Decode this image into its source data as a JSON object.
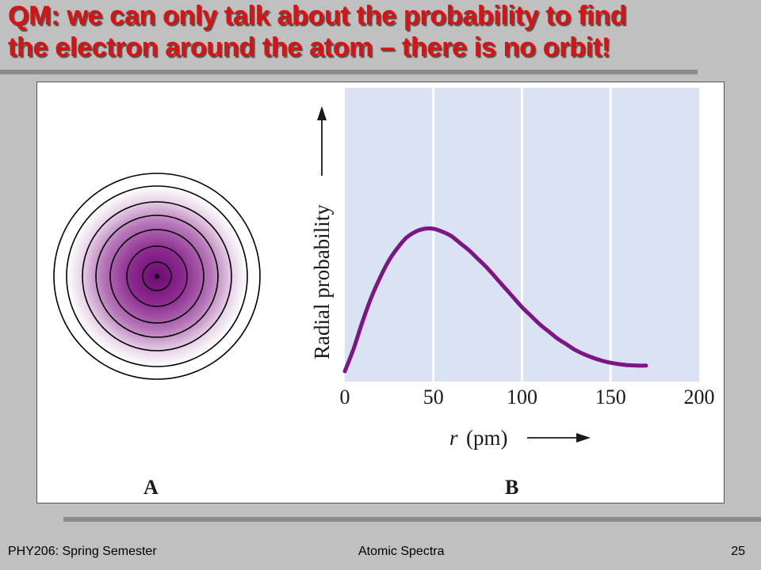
{
  "slide": {
    "title_line1": "QM: we can only talk about the probability to find",
    "title_line2": "the electron around the atom – there is no orbit!",
    "title_color": "#dd1111"
  },
  "figure": {
    "panel_a_label": "A",
    "panel_b_label": "B",
    "orbital_color": "#8a1a8a",
    "orbital_rings": 6,
    "chart_background": "#d9e3f4",
    "curve_color": "#7d1585"
  },
  "chart_data": {
    "type": "line",
    "xlabel_var": "r",
    "xlabel_unit": "(pm)",
    "ylabel": "Radial probability",
    "xlim": [
      0,
      200
    ],
    "ylim": [
      0,
      1
    ],
    "x_ticks": [
      "0",
      "50",
      "100",
      "150",
      "200"
    ],
    "grid": "vertical",
    "series": [
      {
        "x": [
          0,
          5,
          10,
          15,
          20,
          25,
          30,
          35,
          40,
          45,
          50,
          55,
          60,
          65,
          70,
          75,
          80,
          85,
          90,
          95,
          100,
          105,
          110,
          115,
          120,
          125,
          130,
          135,
          140,
          145,
          150,
          155,
          160,
          165,
          170
        ],
        "values": [
          0.0,
          0.16,
          0.35,
          0.52,
          0.66,
          0.78,
          0.87,
          0.94,
          0.98,
          1.0,
          1.0,
          0.98,
          0.95,
          0.9,
          0.85,
          0.79,
          0.73,
          0.66,
          0.59,
          0.52,
          0.45,
          0.39,
          0.33,
          0.28,
          0.23,
          0.19,
          0.15,
          0.12,
          0.095,
          0.075,
          0.06,
          0.05,
          0.043,
          0.04,
          0.04
        ]
      }
    ]
  },
  "footer": {
    "course": "PHY206: Spring Semester",
    "topic": "Atomic Spectra",
    "page": "25"
  }
}
